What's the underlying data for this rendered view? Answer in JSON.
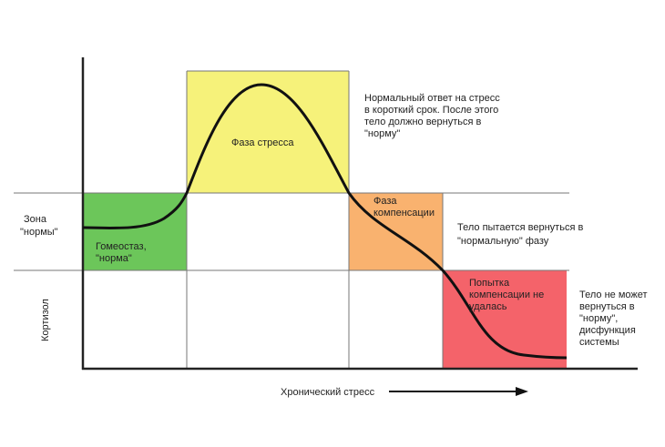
{
  "axes": {
    "y_label": "Кортизол",
    "x_label": "Хронический стресс"
  },
  "zone_label": [
    "Зона",
    "\"нормы\""
  ],
  "boxes": [
    {
      "label": [
        "Гомеостаз,",
        "\"норма\""
      ]
    },
    {
      "label": [
        "Фаза  стресса"
      ]
    },
    {
      "label": [
        "Фаза",
        "компенсации"
      ]
    },
    {
      "label": [
        "Попытка",
        "компенсации не",
        "удалась"
      ]
    }
  ],
  "notes": [
    [
      "Нормальный ответ на стресс",
      "в короткий срок. После этого",
      "тело должно вернуться в",
      "\"норму\""
    ],
    [
      "Тело пытается вернуться в",
      "\"нормальную\" фазу"
    ],
    [
      "Тело не может",
      "вернуться в",
      "\"норму\",",
      "дисфункция",
      "системы"
    ]
  ]
}
